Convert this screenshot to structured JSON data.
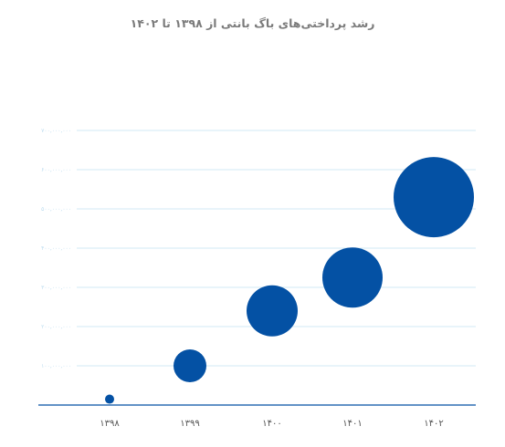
{
  "chart_data": {
    "type": "scatter",
    "title": "رشد پرداختی‌های باگ بانتی از ۱۳۹۸ تا ۱۴۰۲",
    "xlabel": "",
    "ylabel": "",
    "categories": [
      "۱۳۹۸",
      "۱۳۹۹",
      "۱۴۰۰",
      "۱۴۰۱",
      "۱۴۰۲"
    ],
    "values": [
      15000000,
      100000000,
      240000000,
      325000000,
      530000000
    ],
    "bubble_sizes": [
      5,
      18,
      28,
      33,
      44
    ],
    "ylim": [
      0,
      700000000
    ],
    "y_ticks": [
      {
        "value": 100000000,
        "label": "۱۰۰,۰۰۰,۰۰۰"
      },
      {
        "value": 200000000,
        "label": "۲۰۰,۰۰۰,۰۰۰"
      },
      {
        "value": 300000000,
        "label": "۳۰۰,۰۰۰,۰۰۰"
      },
      {
        "value": 400000000,
        "label": "۴۰۰,۰۰۰,۰۰۰"
      },
      {
        "value": 500000000,
        "label": "۵۰۰,۰۰۰,۰۰۰"
      },
      {
        "value": 600000000,
        "label": "۶۰۰,۰۰۰,۰۰۰"
      },
      {
        "value": 700000000,
        "label": "۷۰۰,۰۰۰,۰۰۰"
      }
    ],
    "grid": true,
    "colors": {
      "bubble": "#0451a4",
      "grid": "#d2e9f6",
      "axis": "#0451a4"
    }
  }
}
